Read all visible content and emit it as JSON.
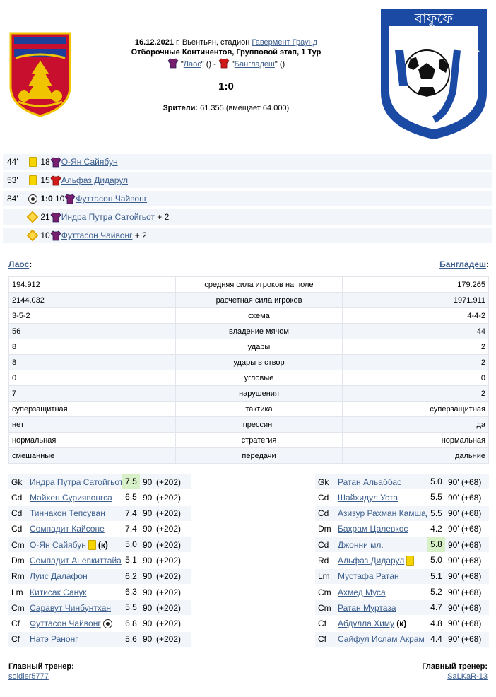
{
  "match": {
    "date": "16.12.2021",
    "city_prefix": "г. Вьентьян, стадион",
    "stadium": "Гавермент Граунд",
    "tournament": "Отборочные Континентов, Групповой этап, 1 Тур",
    "home_team": "Лаос",
    "away_team": "Бангладеш",
    "home_quote_open": "\"",
    "home_quote_close": "\" () - ",
    "away_quote_open": "\"",
    "away_quote_close": "\" ()",
    "score": "1:0",
    "attendance_label": "Зрители:",
    "attendance_value": "61.355 (вмещает 64.000)"
  },
  "colors": {
    "home_shirt": "#7a1f6e",
    "away_shirt": "#d11a1a",
    "link": "#3d5f8d",
    "row_alt": "#f2f5fa",
    "best_mark": "#d8f0c8"
  },
  "events": [
    {
      "minute": "44'",
      "icon": "yellow-card-icon",
      "number": "18",
      "team": "home",
      "player": "О-Ян Сайябун",
      "extra": ""
    },
    {
      "minute": "53'",
      "icon": "yellow-card-icon",
      "number": "15",
      "team": "away",
      "player": "Альфаз Дидарул",
      "extra": ""
    },
    {
      "minute": "84'",
      "icon": "ball-icon",
      "score": "1:0",
      "number": "10",
      "team": "home",
      "player": "Футтасон Чайвонг",
      "extra": ""
    },
    {
      "minute": "",
      "icon": "assist-icon",
      "number": "21",
      "team": "home",
      "player": "Индра Путра Сатойгьот",
      "extra": "+ 2"
    },
    {
      "minute": "",
      "icon": "assist-icon",
      "number": "10",
      "team": "home",
      "player": "Футтасон Чайвонг",
      "extra": "+ 2"
    }
  ],
  "teams": {
    "left": "Лаос",
    "left_suffix": ":",
    "right": "Бангладеш",
    "right_suffix": ":"
  },
  "stats": [
    {
      "home": "194.912",
      "label": "средняя сила игроков на поле",
      "away": "179.265"
    },
    {
      "home": "2144.032",
      "label": "расчетная сила игроков",
      "away": "1971.911"
    },
    {
      "home": "3-5-2",
      "label": "схема",
      "away": "4-4-2"
    },
    {
      "home": "56",
      "label": "владение мячом",
      "away": "44"
    },
    {
      "home": "8",
      "label": "удары",
      "away": "2"
    },
    {
      "home": "8",
      "label": "удары в створ",
      "away": "2"
    },
    {
      "home": "0",
      "label": "угловые",
      "away": "0"
    },
    {
      "home": "7",
      "label": "нарушения",
      "away": "2"
    },
    {
      "home": "суперзащитная",
      "label": "тактика",
      "away": "суперзащитная"
    },
    {
      "home": "нет",
      "label": "прессинг",
      "away": "да"
    },
    {
      "home": "нормальная",
      "label": "стратегия",
      "away": "нормальная"
    },
    {
      "home": "смешанные",
      "label": "передачи",
      "away": "дальние"
    }
  ],
  "lineup_home": [
    {
      "pos": "Gk",
      "name": "Индра Путра Сатойгьот",
      "mark": "7.5",
      "best": true,
      "time": "90' (+202)",
      "badge": ""
    },
    {
      "pos": "Cd",
      "name": "Майхен Суриявонгса",
      "mark": "6.5",
      "best": false,
      "time": "90' (+202)",
      "badge": ""
    },
    {
      "pos": "Cd",
      "name": "Тиннакон Тепсуван",
      "mark": "7.4",
      "best": false,
      "time": "90' (+202)",
      "badge": ""
    },
    {
      "pos": "Cd",
      "name": "Сомпадит Кайсоне",
      "mark": "7.4",
      "best": false,
      "time": "90' (+202)",
      "badge": ""
    },
    {
      "pos": "Cm",
      "name": "О-Ян Сайябун",
      "mark": "5.0",
      "best": false,
      "time": "90' (+202)",
      "badge": "yellow",
      "captain": "(к)"
    },
    {
      "pos": "Dm",
      "name": "Сомпадит Аневкиттайа",
      "mark": "5.1",
      "best": false,
      "time": "90' (+202)",
      "badge": ""
    },
    {
      "pos": "Rm",
      "name": "Луис Далафон",
      "mark": "6.2",
      "best": false,
      "time": "90' (+202)",
      "badge": ""
    },
    {
      "pos": "Lm",
      "name": "Китисак Санук",
      "mark": "6.3",
      "best": false,
      "time": "90' (+202)",
      "badge": ""
    },
    {
      "pos": "Cm",
      "name": "Саравут Чинбунтхан",
      "mark": "5.5",
      "best": false,
      "time": "90' (+202)",
      "badge": ""
    },
    {
      "pos": "Cf",
      "name": "Футтасон Чайвонг",
      "mark": "6.8",
      "best": false,
      "time": "90' (+202)",
      "badge": "ball"
    },
    {
      "pos": "Cf",
      "name": "Натэ Ранонг",
      "mark": "5.6",
      "best": false,
      "time": "90' (+202)",
      "badge": ""
    }
  ],
  "lineup_away": [
    {
      "pos": "Gk",
      "name": "Ратан Альаббас",
      "mark": "5.0",
      "best": false,
      "time": "90' (+68)",
      "badge": ""
    },
    {
      "pos": "Cd",
      "name": "Шайхидул Уста",
      "mark": "5.5",
      "best": false,
      "time": "90' (+68)",
      "badge": ""
    },
    {
      "pos": "Cd",
      "name": "Азизур Рахман Камшад",
      "mark": "5.5",
      "best": false,
      "time": "90' (+68)",
      "badge": ""
    },
    {
      "pos": "Dm",
      "name": "Бахрам Цалевкос",
      "mark": "4.2",
      "best": false,
      "time": "90' (+68)",
      "badge": ""
    },
    {
      "pos": "Cd",
      "name": "Джонни мл.",
      "mark": "5.8",
      "best": true,
      "time": "90' (+68)",
      "badge": ""
    },
    {
      "pos": "Rd",
      "name": "Альфаз Дидарул",
      "mark": "5.0",
      "best": false,
      "time": "90' (+68)",
      "badge": "yellow"
    },
    {
      "pos": "Lm",
      "name": "Мустафа Ратан",
      "mark": "5.1",
      "best": false,
      "time": "90' (+68)",
      "badge": ""
    },
    {
      "pos": "Cm",
      "name": "Ахмед Муса",
      "mark": "5.2",
      "best": false,
      "time": "90' (+68)",
      "badge": ""
    },
    {
      "pos": "Cm",
      "name": "Ратан Муртаза",
      "mark": "4.7",
      "best": false,
      "time": "90' (+68)",
      "badge": ""
    },
    {
      "pos": "Cf",
      "name": "Абдулла Химу",
      "mark": "4.8",
      "best": false,
      "time": "90' (+68)",
      "badge": "",
      "captain": "(к)"
    },
    {
      "pos": "Cf",
      "name": "Сайфул Ислам Акрам",
      "mark": "4.4",
      "best": false,
      "time": "90' (+68)",
      "badge": ""
    }
  ],
  "coaches": {
    "left_label": "Главный тренер:",
    "left_name": "soldier5777",
    "right_label": "Главный тренер:",
    "right_name": "SaLKaR-13"
  },
  "logos": {
    "right_text": "BANGLADESH FOOTBALL FEDERATION",
    "right_top": "বাফুফে"
  }
}
